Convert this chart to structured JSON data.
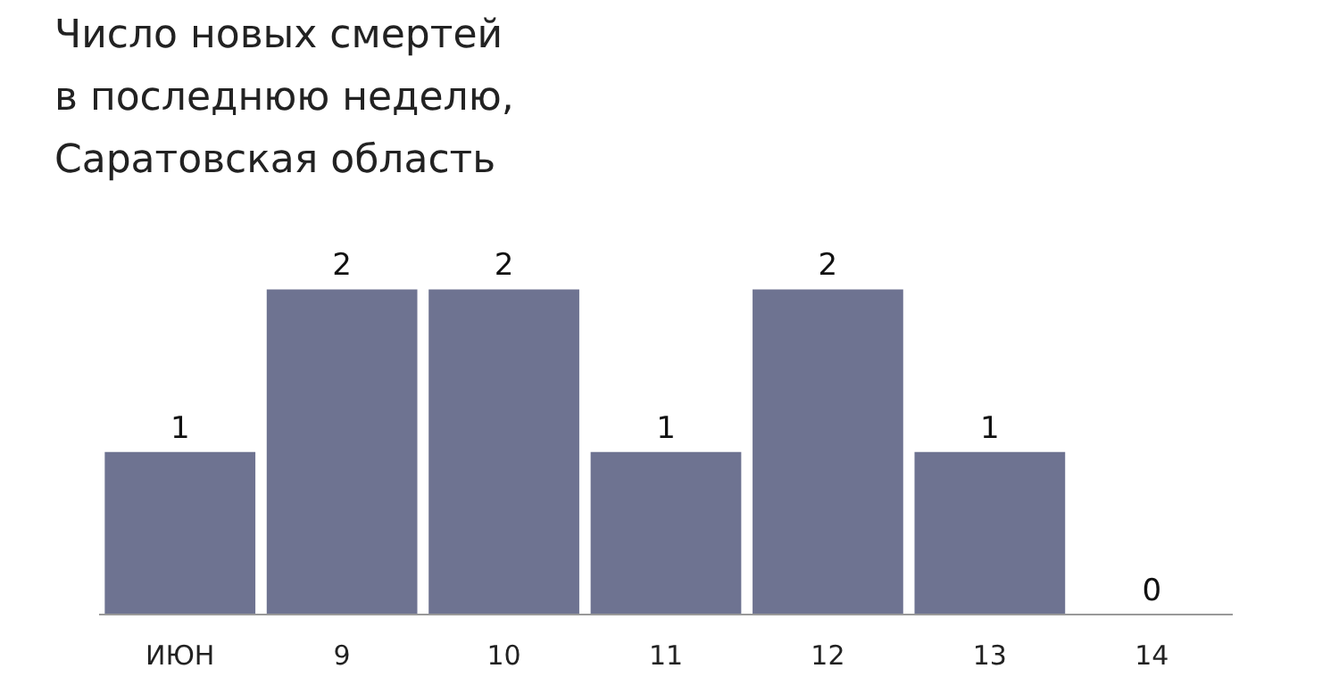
{
  "chart_data": {
    "type": "bar",
    "title": "Число новых смертей в последнюю неделю, Саратовская область",
    "categories": [
      "ИЮН",
      "9",
      "10",
      "11",
      "12",
      "13",
      "14"
    ],
    "values": [
      1,
      2,
      2,
      1,
      2,
      1,
      0
    ],
    "color": "#6e7391",
    "data_labels": true
  }
}
